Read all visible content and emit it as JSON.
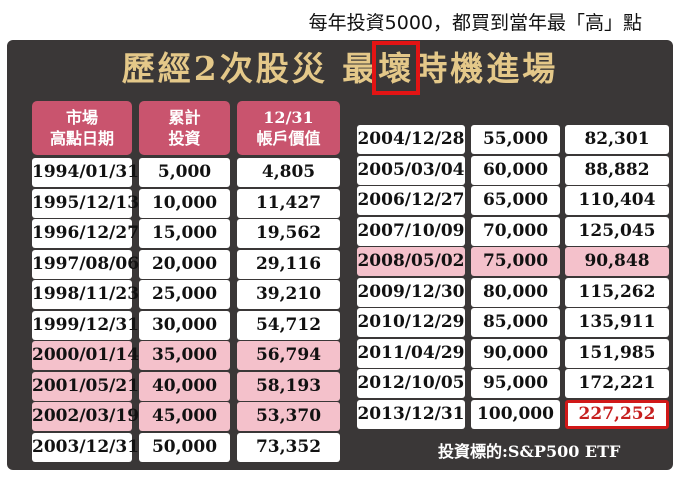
{
  "caption": "每年投資5000，都買到當年最「高」點",
  "headline": "歷經2次股災 最壞時機進場",
  "headers": {
    "date": "市場\n高點日期",
    "invest": "累計\n投資",
    "value": "12/31\n帳戶價值"
  },
  "left_rows": [
    {
      "date": "1994/01/31",
      "invest": "5,000",
      "value": "4,805",
      "pink": false
    },
    {
      "date": "1995/12/13",
      "invest": "10,000",
      "value": "11,427",
      "pink": false
    },
    {
      "date": "1996/12/27",
      "invest": "15,000",
      "value": "19,562",
      "pink": false
    },
    {
      "date": "1997/08/06",
      "invest": "20,000",
      "value": "29,116",
      "pink": false
    },
    {
      "date": "1998/11/23",
      "invest": "25,000",
      "value": "39,210",
      "pink": false
    },
    {
      "date": "1999/12/31",
      "invest": "30,000",
      "value": "54,712",
      "pink": false
    },
    {
      "date": "2000/01/14",
      "invest": "35,000",
      "value": "56,794",
      "pink": true
    },
    {
      "date": "2001/05/21",
      "invest": "40,000",
      "value": "58,193",
      "pink": true
    },
    {
      "date": "2002/03/19",
      "invest": "45,000",
      "value": "53,370",
      "pink": true
    },
    {
      "date": "2003/12/31",
      "invest": "50,000",
      "value": "73,352",
      "pink": false
    }
  ],
  "right_rows": [
    {
      "date": "2004/12/28",
      "invest": "55,000",
      "value": "82,301",
      "pink": false
    },
    {
      "date": "2005/03/04",
      "invest": "60,000",
      "value": "88,882",
      "pink": false
    },
    {
      "date": "2006/12/27",
      "invest": "65,000",
      "value": "110,404",
      "pink": false
    },
    {
      "date": "2007/10/09",
      "invest": "70,000",
      "value": "125,045",
      "pink": false
    },
    {
      "date": "2008/05/02",
      "invest": "75,000",
      "value": "90,848",
      "pink": true
    },
    {
      "date": "2009/12/30",
      "invest": "80,000",
      "value": "115,262",
      "pink": false
    },
    {
      "date": "2010/12/29",
      "invest": "85,000",
      "value": "135,911",
      "pink": false
    },
    {
      "date": "2011/04/29",
      "invest": "90,000",
      "value": "151,985",
      "pink": false
    },
    {
      "date": "2012/10/05",
      "invest": "95,000",
      "value": "172,221",
      "pink": false
    },
    {
      "date": "2013/12/31",
      "invest": "100,000",
      "value": "227,252",
      "pink": false,
      "highlight_value": true
    }
  ],
  "footer": "投資標的:S&P500 ETF",
  "colors": {
    "panel": "#3a3737",
    "headline": "#e4c889",
    "header_bg": "#c9546e",
    "pink_row": "#f4c1cb",
    "highlight": "#d11818"
  }
}
